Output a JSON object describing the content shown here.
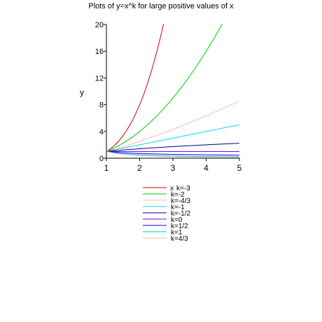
{
  "chart_data": {
    "type": "line",
    "title": "Plots of y=x^k for large positive values of x",
    "xlabel": "x",
    "ylabel": "y",
    "xlim": [
      1,
      5
    ],
    "ylim": [
      0,
      20
    ],
    "x_ticks": [
      "1",
      "2",
      "3",
      "4",
      "5"
    ],
    "y_ticks": [
      "0",
      "4",
      "8",
      "12",
      "16",
      "20"
    ],
    "grid": false,
    "legend_position": "bottom",
    "series": [
      {
        "name": "k=-3",
        "exponent": 3,
        "color": "#dd0000",
        "x": [
          1,
          1.5,
          2,
          2.5,
          2.71
        ],
        "y": [
          1,
          3.38,
          8,
          15.6,
          20
        ]
      },
      {
        "name": "k=-2",
        "exponent": 2,
        "color": "#00cc00",
        "x": [
          1,
          2,
          3,
          4,
          4.47
        ],
        "y": [
          1,
          4,
          9,
          16,
          20
        ]
      },
      {
        "name": "k=-4/3",
        "exponent": 1.3333,
        "color": "#ffb6c1",
        "x": [
          1,
          2,
          3,
          4,
          5
        ],
        "y": [
          1,
          2.52,
          4.33,
          6.35,
          8.55
        ]
      },
      {
        "name": "k=-1",
        "exponent": 1,
        "color": "#00dddd",
        "x": [
          1,
          2,
          3,
          4,
          5
        ],
        "y": [
          1,
          2,
          3,
          4,
          5
        ]
      },
      {
        "name": "k=-1/2",
        "exponent": 0.5,
        "color": "#000080",
        "x": [
          1,
          2,
          3,
          4,
          5
        ],
        "y": [
          1,
          1.41,
          1.73,
          2,
          2.24
        ]
      },
      {
        "name": "k=0",
        "exponent": 0,
        "color": "#8000ff",
        "x": [
          1,
          2,
          3,
          4,
          5
        ],
        "y": [
          1,
          1,
          1,
          1,
          1
        ]
      },
      {
        "name": "k=1/2",
        "exponent": -0.5,
        "color": "#0000ff",
        "x": [
          1,
          2,
          3,
          4,
          5
        ],
        "y": [
          1,
          0.71,
          0.58,
          0.5,
          0.45
        ]
      },
      {
        "name": "k=1",
        "exponent": -1,
        "color": "#00cccc",
        "x": [
          1,
          2,
          3,
          4,
          5
        ],
        "y": [
          1,
          0.5,
          0.33,
          0.25,
          0.2
        ]
      },
      {
        "name": "k=4/3",
        "exponent": -1.3333,
        "color": "#ffb6c1",
        "x": [
          1,
          2,
          3,
          4,
          5
        ],
        "y": [
          1,
          0.4,
          0.23,
          0.16,
          0.12
        ]
      }
    ]
  }
}
